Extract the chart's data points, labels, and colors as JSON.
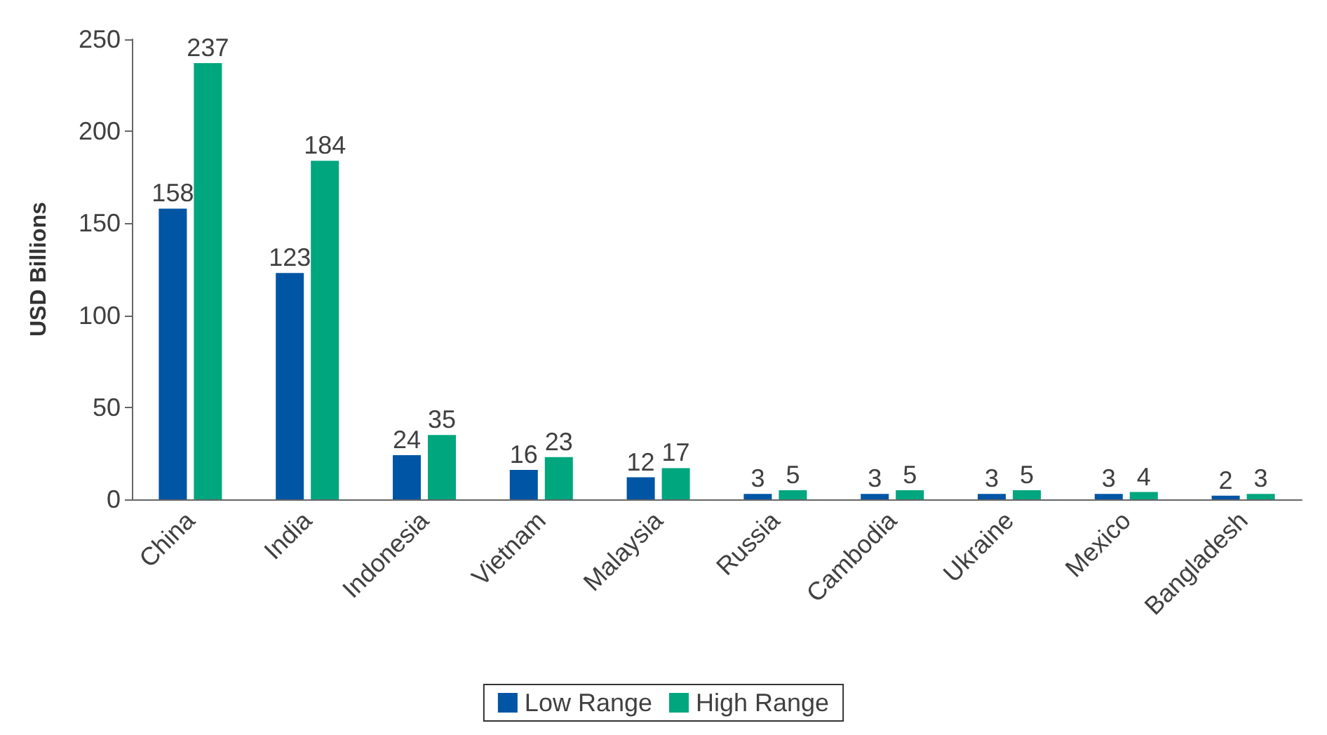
{
  "chart_data": {
    "type": "bar",
    "ylabel": "USD Billions",
    "categories": [
      "China",
      "India",
      "Indonesia",
      "Vietnam",
      "Malaysia",
      "Russia",
      "Cambodia",
      "Ukraine",
      "Mexico",
      "Bangladesh"
    ],
    "series": [
      {
        "name": "Low Range",
        "color": "#0055a4",
        "values": [
          158,
          123,
          24,
          16,
          12,
          3,
          3,
          3,
          3,
          2
        ]
      },
      {
        "name": "High Range",
        "color": "#00a67e",
        "values": [
          237,
          184,
          35,
          23,
          17,
          5,
          5,
          5,
          4,
          3
        ]
      }
    ],
    "ylim": [
      0,
      250
    ],
    "yticks": [
      0,
      50,
      100,
      150,
      200,
      250
    ],
    "grid": false,
    "legend": "bottom",
    "data_labels": true
  }
}
